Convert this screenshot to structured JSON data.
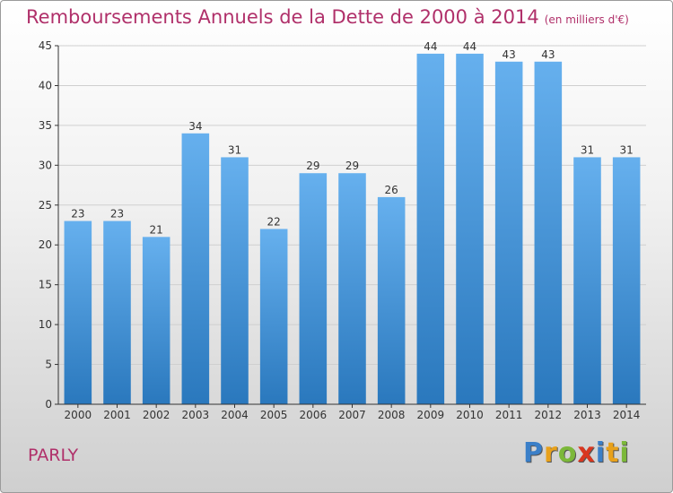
{
  "title": "Remboursements Annuels de la Dette de 2000 à 2014",
  "unit": "(en milliers d'€)",
  "commune": "PARLY",
  "brand": {
    "letters": [
      "P",
      "r",
      "o",
      "x",
      "i",
      "t",
      "i"
    ],
    "colors": [
      "#3a7fc8",
      "#e8a11b",
      "#7cb83a",
      "#d9361f",
      "#3a7fc8",
      "#e8a11b",
      "#7cb83a"
    ]
  },
  "colors": {
    "title": "#b0306a",
    "bar_top": "#66b0ee",
    "bar_bottom": "#2a78bd",
    "axis": "#333333",
    "grid": "#cfcfcf"
  },
  "chart_data": {
    "type": "bar",
    "title": "Remboursements Annuels de la Dette de 2000 à 2014",
    "xlabel": "",
    "ylabel": "",
    "categories": [
      "2000",
      "2001",
      "2002",
      "2003",
      "2004",
      "2005",
      "2006",
      "2007",
      "2008",
      "2009",
      "2010",
      "2011",
      "2012",
      "2013",
      "2014"
    ],
    "values": [
      23,
      23,
      21,
      34,
      31,
      22,
      29,
      29,
      26,
      44,
      44,
      43,
      43,
      31,
      31
    ],
    "ylim": [
      0,
      45
    ],
    "yticks": [
      0,
      5,
      10,
      15,
      20,
      25,
      30,
      35,
      40,
      45
    ],
    "grid": true
  }
}
